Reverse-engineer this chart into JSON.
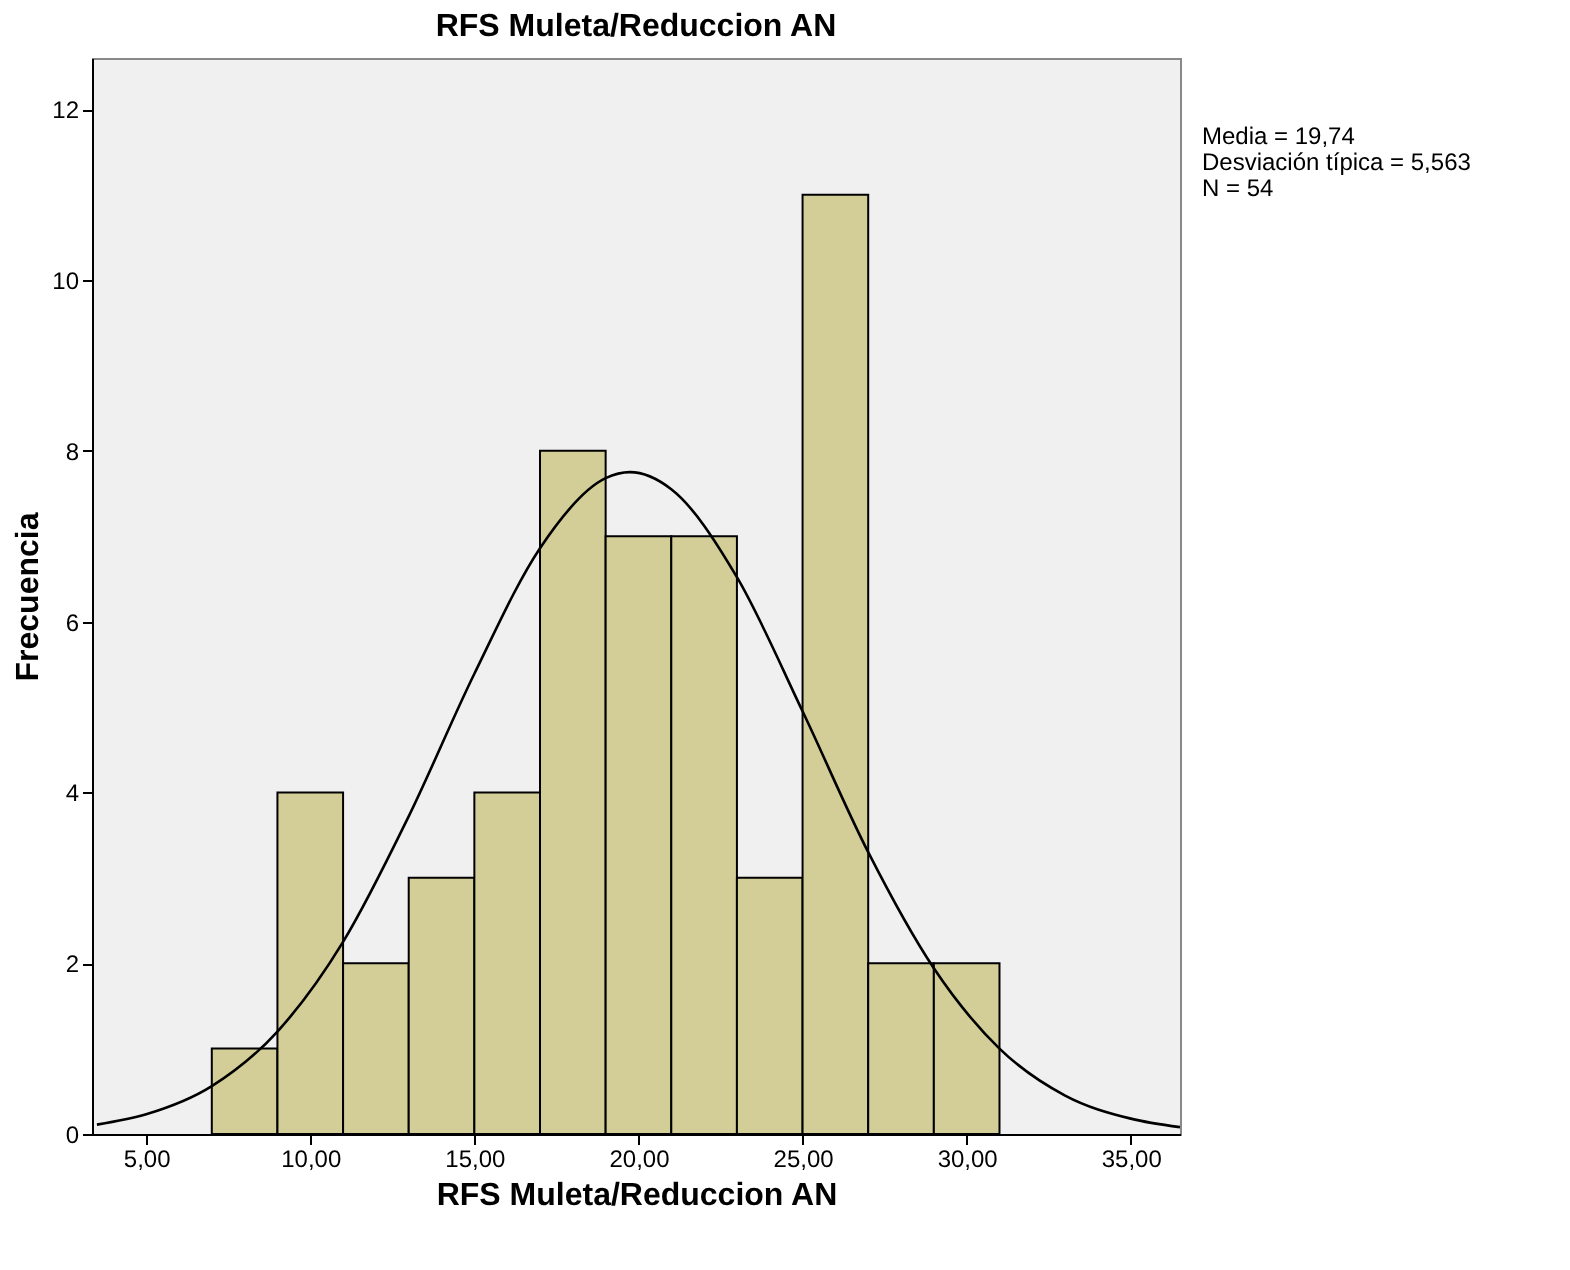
{
  "chart_data": {
    "type": "histogram",
    "title": "RFS Muleta/Reduccion AN",
    "xlabel": "RFS Muleta/Reduccion AN",
    "ylabel": "Frecuencia",
    "bins": [
      7,
      9,
      11,
      13,
      15,
      17,
      19,
      21,
      23,
      25,
      27,
      29,
      31
    ],
    "values": [
      1,
      4,
      2,
      3,
      4,
      8,
      7,
      7,
      3,
      11,
      2,
      2
    ],
    "color": "#d3ce98",
    "series": [
      {
        "type": "line",
        "color": "#000000",
        "x": [
          3.5,
          5,
          7,
          9,
          11,
          13,
          15,
          17,
          19,
          19.74,
          21,
          23,
          25,
          27,
          29,
          31,
          33,
          35,
          36.5
        ],
        "values": [
          0.11,
          0.23,
          0.56,
          1.2,
          2.25,
          3.72,
          5.39,
          6.86,
          7.68,
          7.75,
          7.55,
          6.52,
          4.95,
          3.3,
          1.94,
          1.0,
          0.45,
          0.18,
          0.08
        ]
      }
    ],
    "marker": "none",
    "xlim": [
      3.35,
      36.5
    ],
    "xticks": [
      {
        "value": 5,
        "label": "5,00"
      },
      {
        "value": 10,
        "label": "10,00"
      },
      {
        "value": 15,
        "label": "15,00"
      },
      {
        "value": 20,
        "label": "20,00"
      },
      {
        "value": 25,
        "label": "25,00"
      },
      {
        "value": 30,
        "label": "30,00"
      },
      {
        "value": 35,
        "label": "35,00"
      }
    ],
    "ylim": [
      0,
      12.6
    ],
    "yticks": [
      0,
      2,
      4,
      6,
      8,
      10,
      12
    ],
    "annotations": [
      "Media = 19,74",
      "Desviación típica = 5,563",
      "N = 54"
    ]
  }
}
